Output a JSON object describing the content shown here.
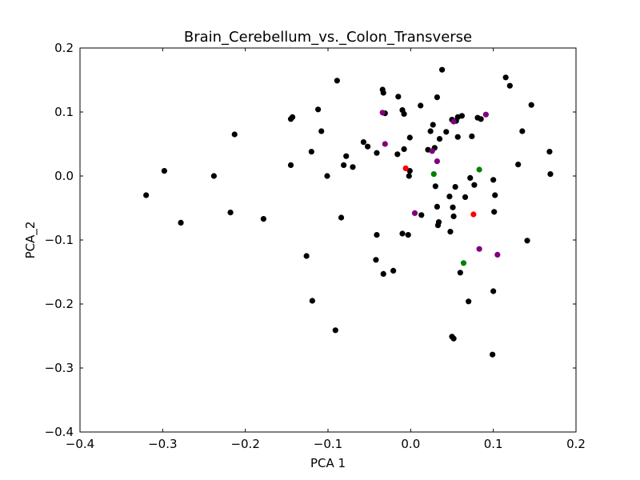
{
  "chart_data": {
    "type": "scatter",
    "title": "Brain_Cerebellum_vs._Colon_Transverse",
    "xlabel": "PCA 1",
    "ylabel": "PCA_2",
    "xlim": [
      -0.4,
      0.2
    ],
    "ylim": [
      -0.4,
      0.2
    ],
    "grid": false,
    "legend": "none",
    "xticks": [
      -0.4,
      -0.3,
      -0.2,
      -0.1,
      0.0,
      0.1,
      0.2
    ],
    "yticks": [
      -0.4,
      -0.3,
      -0.2,
      -0.1,
      0.0,
      0.1,
      0.2
    ],
    "xtick_labels": [
      "−0.4",
      "−0.3",
      "−0.2",
      "−0.1",
      "0.0",
      "0.1",
      "0.2"
    ],
    "ytick_labels": [
      "−0.4",
      "−0.3",
      "−0.2",
      "−0.1",
      "0.0",
      "0.1",
      "0.2"
    ],
    "series": [
      {
        "color": "#000000",
        "points": [
          [
            -0.32,
            -0.03
          ],
          [
            -0.298,
            0.008
          ],
          [
            -0.278,
            -0.073
          ],
          [
            -0.238,
            0.0
          ],
          [
            -0.218,
            -0.057
          ],
          [
            -0.213,
            0.065
          ],
          [
            -0.178,
            -0.067
          ],
          [
            -0.145,
            0.089
          ],
          [
            -0.143,
            0.092
          ],
          [
            -0.145,
            0.017
          ],
          [
            -0.126,
            -0.125
          ],
          [
            -0.12,
            0.038
          ],
          [
            -0.119,
            -0.195
          ],
          [
            -0.112,
            0.104
          ],
          [
            -0.108,
            0.07
          ],
          [
            -0.101,
            0.0
          ],
          [
            -0.091,
            -0.241
          ],
          [
            -0.089,
            0.149
          ],
          [
            -0.084,
            -0.065
          ],
          [
            -0.081,
            0.017
          ],
          [
            -0.078,
            0.031
          ],
          [
            -0.07,
            0.014
          ],
          [
            -0.057,
            0.053
          ],
          [
            -0.052,
            0.046
          ],
          [
            -0.042,
            -0.131
          ],
          [
            -0.041,
            -0.092
          ],
          [
            -0.041,
            0.036
          ],
          [
            -0.034,
            0.135
          ],
          [
            -0.033,
            0.13
          ],
          [
            -0.031,
            0.098
          ],
          [
            -0.033,
            -0.153
          ],
          [
            -0.021,
            -0.148
          ],
          [
            -0.016,
            0.034
          ],
          [
            -0.015,
            0.124
          ],
          [
            -0.01,
            0.103
          ],
          [
            -0.008,
            0.097
          ],
          [
            -0.01,
            -0.09
          ],
          [
            -0.008,
            0.042
          ],
          [
            -0.003,
            -0.092
          ],
          [
            -0.002,
            0.0
          ],
          [
            -0.001,
            0.06
          ],
          [
            -0.001,
            0.008
          ],
          [
            0.012,
            0.11
          ],
          [
            0.013,
            -0.061
          ],
          [
            0.021,
            0.041
          ],
          [
            0.024,
            0.07
          ],
          [
            0.027,
            0.08
          ],
          [
            0.029,
            0.044
          ],
          [
            0.03,
            -0.016
          ],
          [
            0.032,
            0.123
          ],
          [
            0.032,
            -0.048
          ],
          [
            0.033,
            -0.077
          ],
          [
            0.034,
            -0.072
          ],
          [
            0.035,
            0.058
          ],
          [
            0.043,
            0.069
          ],
          [
            0.047,
            -0.032
          ],
          [
            0.048,
            -0.087
          ],
          [
            0.05,
            0.088
          ],
          [
            0.051,
            -0.049
          ],
          [
            0.052,
            -0.063
          ],
          [
            0.05,
            -0.251
          ],
          [
            0.052,
            -0.254
          ],
          [
            0.054,
            -0.017
          ],
          [
            0.055,
            0.086
          ],
          [
            0.057,
            0.061
          ],
          [
            0.057,
            0.092
          ],
          [
            0.06,
            -0.151
          ],
          [
            0.062,
            0.094
          ],
          [
            0.066,
            -0.033
          ],
          [
            0.07,
            -0.196
          ],
          [
            0.072,
            -0.003
          ],
          [
            0.074,
            0.062
          ],
          [
            0.077,
            -0.014
          ],
          [
            0.081,
            0.091
          ],
          [
            0.085,
            0.089
          ],
          [
            0.1,
            -0.006
          ],
          [
            0.1,
            -0.18
          ],
          [
            0.101,
            -0.056
          ],
          [
            0.102,
            -0.03
          ],
          [
            0.099,
            -0.279
          ],
          [
            0.115,
            0.154
          ],
          [
            0.12,
            0.141
          ],
          [
            0.13,
            0.018
          ],
          [
            0.135,
            0.07
          ],
          [
            0.141,
            -0.101
          ],
          [
            0.146,
            0.111
          ],
          [
            0.168,
            0.038
          ],
          [
            0.169,
            0.003
          ],
          [
            0.038,
            0.166
          ]
        ]
      },
      {
        "color": "#800080",
        "points": [
          [
            -0.034,
            0.099
          ],
          [
            -0.031,
            0.05
          ],
          [
            0.026,
            0.039
          ],
          [
            0.032,
            0.023
          ],
          [
            0.005,
            -0.058
          ],
          [
            0.052,
            0.085
          ],
          [
            0.091,
            0.096
          ],
          [
            0.083,
            -0.114
          ],
          [
            0.105,
            -0.123
          ]
        ]
      },
      {
        "color": "#ff0000",
        "points": [
          [
            -0.006,
            0.012
          ],
          [
            0.076,
            -0.06
          ]
        ]
      },
      {
        "color": "#008000",
        "points": [
          [
            0.028,
            0.003
          ],
          [
            0.083,
            0.01
          ],
          [
            0.064,
            -0.136
          ]
        ]
      }
    ]
  }
}
